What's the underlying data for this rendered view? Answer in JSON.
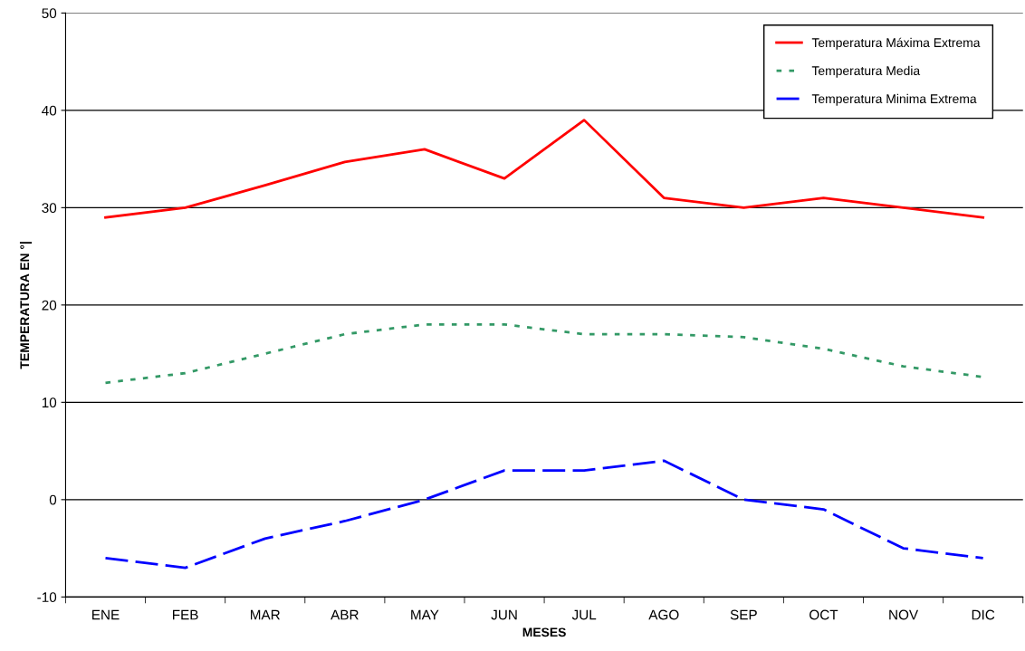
{
  "chart_data": {
    "type": "line",
    "xlabel": "MESES",
    "ylabel": "TEMPERATURA EN °|",
    "categories": [
      "ENE",
      "FEB",
      "MAR",
      "ABR",
      "MAY",
      "JUN",
      "JUL",
      "AGO",
      "SEP",
      "OCT",
      "NOV",
      "DIC"
    ],
    "series": [
      {
        "name": "Temperatura Máxima Extrema",
        "color": "#ff0000",
        "line_style": "solid",
        "values": [
          29,
          30,
          32.3,
          34.7,
          36,
          33,
          39,
          31,
          30,
          31,
          30,
          29
        ]
      },
      {
        "name": "Temperatura Media",
        "color": "#339966",
        "line_style": "dotted",
        "values": [
          12,
          13,
          15,
          17,
          18,
          18,
          17,
          17,
          16.7,
          15.5,
          13.7,
          12.6
        ]
      },
      {
        "name": "Temperatura Minima Extrema",
        "color": "#0000ff",
        "line_style": "dashed",
        "values": [
          -6,
          -7,
          -4,
          -2.2,
          0,
          3,
          3,
          4,
          0,
          -1,
          -5,
          -6
        ]
      }
    ],
    "ylim": [
      -10,
      50
    ],
    "yticks": [
      -10,
      0,
      10,
      20,
      30,
      40,
      50
    ],
    "grid": "y",
    "legend": "top right",
    "marker": "none"
  }
}
